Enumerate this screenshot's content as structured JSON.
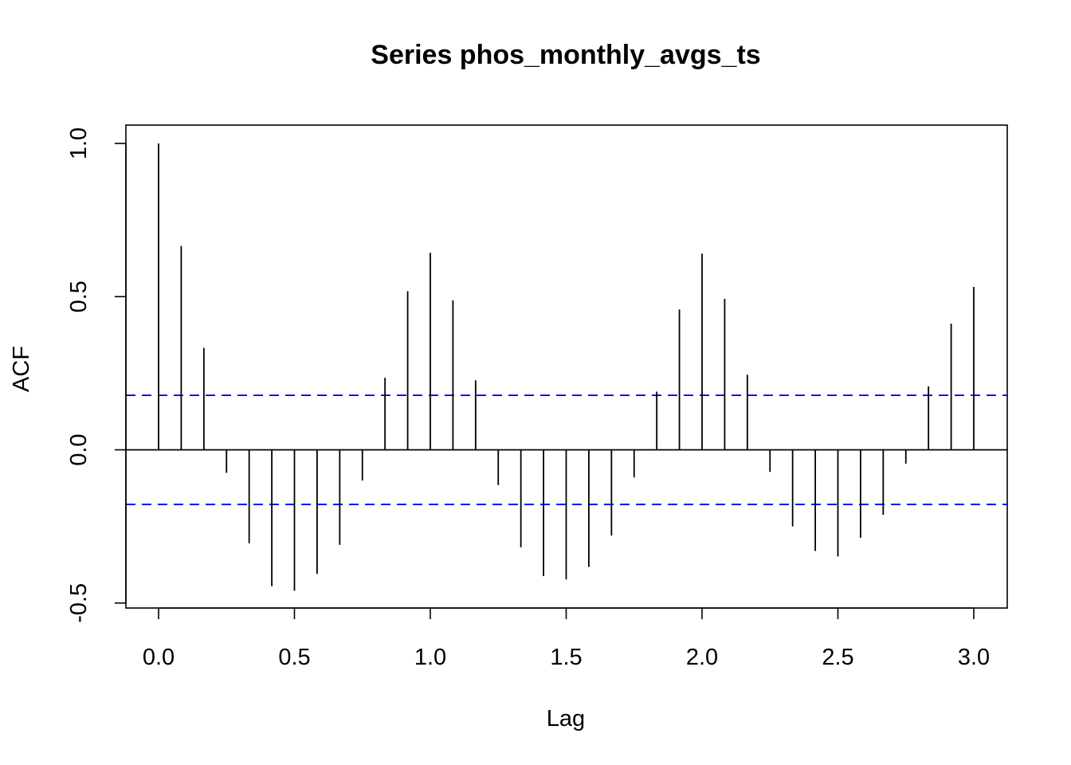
{
  "chart_data": {
    "type": "bar",
    "title": "Series  phos_monthly_avgs_ts",
    "xlabel": "Lag",
    "ylabel": "ACF",
    "xlim": [
      -0.12,
      3.12
    ],
    "ylim": [
      -0.5,
      1.0
    ],
    "xticks": [
      "0.0",
      "0.5",
      "1.0",
      "1.5",
      "2.0",
      "2.5",
      "3.0"
    ],
    "yticks": [
      "-0.5",
      "0.0",
      "0.5",
      "1.0"
    ],
    "confidence_bound": 0.178,
    "confidence_color": "#0000ff",
    "grid": false,
    "lags": [
      0.0,
      0.0833,
      0.1667,
      0.25,
      0.3333,
      0.4167,
      0.5,
      0.5833,
      0.6667,
      0.75,
      0.8333,
      0.9167,
      1.0,
      1.0833,
      1.1667,
      1.25,
      1.3333,
      1.4167,
      1.5,
      1.5833,
      1.6667,
      1.75,
      1.8333,
      1.9167,
      2.0,
      2.0833,
      2.1667,
      2.25,
      2.3333,
      2.4167,
      2.5,
      2.5833,
      2.6667,
      2.75,
      2.8333,
      2.9167,
      3.0
    ],
    "values": [
      1.0,
      0.665,
      0.333,
      -0.075,
      -0.305,
      -0.445,
      -0.46,
      -0.405,
      -0.31,
      -0.1,
      0.235,
      0.518,
      0.643,
      0.488,
      0.227,
      -0.115,
      -0.318,
      -0.412,
      -0.423,
      -0.382,
      -0.28,
      -0.09,
      0.19,
      0.458,
      0.64,
      0.493,
      0.245,
      -0.072,
      -0.25,
      -0.33,
      -0.348,
      -0.287,
      -0.212,
      -0.045,
      0.207,
      0.412,
      0.532
    ]
  }
}
